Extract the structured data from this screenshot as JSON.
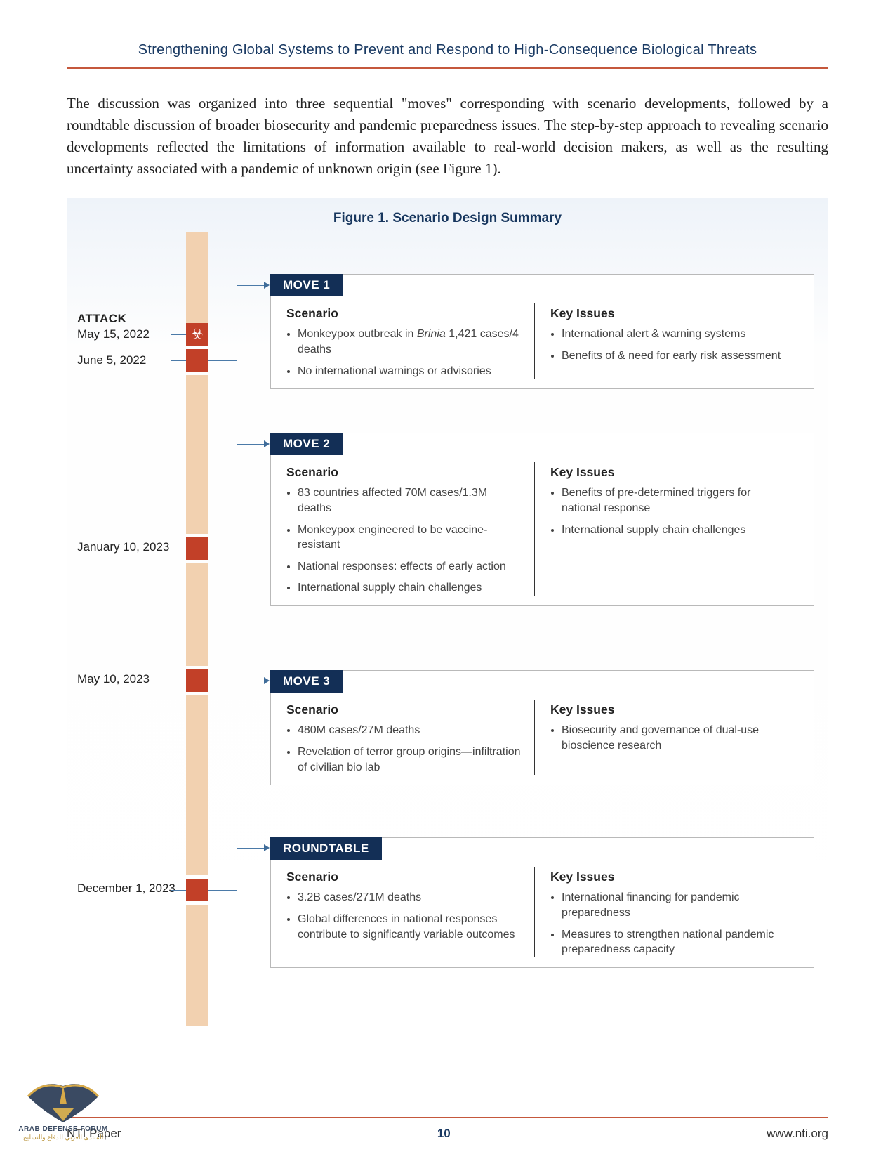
{
  "header": {
    "title": "Strengthening Global Systems to Prevent and Respond to High-Consequence Biological Threats"
  },
  "colors": {
    "rule": "#c5583c",
    "header_text": "#1a3a63",
    "seg_light": "#f2d1b0",
    "seg_dark": "#c24028",
    "tab_bg": "#132f56",
    "connector": "#4b7aa8"
  },
  "intro": "The discussion was organized into three sequential \"moves\" corresponding with scenario developments, followed by a roundtable discussion of broader biosecurity and pandemic preparedness issues. The step-by-step approach to revealing scenario developments reflected the limitations of information available to real-world decision makers, as well as the resulting uncertainty associated with a pandemic of unknown origin (see Figure 1).",
  "figure": {
    "title": "Figure 1. Scenario Design Summary",
    "timeline_labels": {
      "attack": "ATTACK",
      "d1": "May 15, 2022",
      "d2": "June 5, 2022",
      "d3": "January 10, 2023",
      "d4": "May 10, 2023",
      "d5": "December 1, 2023"
    },
    "moves": [
      {
        "tab": "MOVE 1",
        "scenario_h": "Scenario",
        "issues_h": "Key Issues",
        "scenario": [
          "Monkeypox outbreak in <span class=\"ital\">Brinia</span> 1,421 cases/4 deaths",
          "No international warnings or advisories"
        ],
        "issues": [
          "International alert & warning systems",
          "Benefits of & need for early risk assessment"
        ]
      },
      {
        "tab": "MOVE 2",
        "scenario_h": "Scenario",
        "issues_h": "Key Issues",
        "scenario": [
          "83 countries affected 70M cases/1.3M deaths",
          "Monkeypox engineered to be vaccine-resistant",
          "National responses: effects of early action",
          "International supply chain challenges"
        ],
        "issues": [
          "Benefits of pre-determined triggers for national response",
          "International supply chain challenges"
        ]
      },
      {
        "tab": "MOVE 3",
        "scenario_h": "Scenario",
        "issues_h": "Key Issues",
        "scenario": [
          "480M cases/27M deaths",
          "Revelation of terror group origins—infiltration of civilian bio lab"
        ],
        "issues": [
          "Biosecurity and governance of dual-use bioscience research"
        ]
      },
      {
        "tab": "ROUNDTABLE",
        "scenario_h": "Scenario",
        "issues_h": "Key Issues",
        "scenario": [
          "3.2B cases/271M deaths",
          "Global differences in national responses contribute to significantly variable outcomes"
        ],
        "issues": [
          "International financing for pandemic preparedness",
          "Measures to strengthen national pandemic preparedness capacity"
        ]
      }
    ]
  },
  "footer": {
    "left": "NTI Paper",
    "page": "10",
    "right": "www.nti.org"
  },
  "watermark": {
    "line1": "ARAB DEFENSE FORUM",
    "line2": "المنتدى العربي للدفاع والتسليح"
  }
}
